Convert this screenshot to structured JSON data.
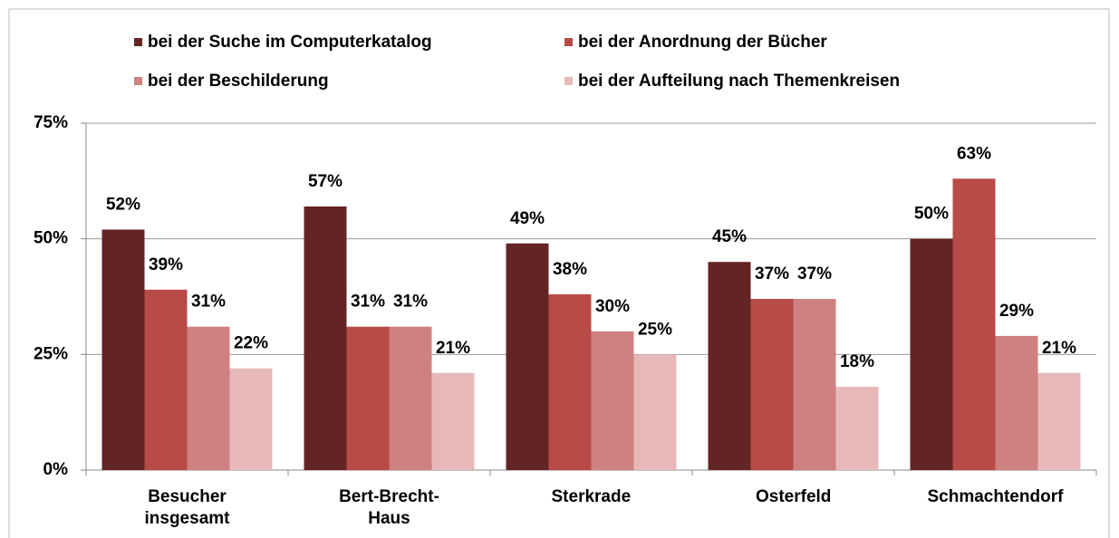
{
  "chart_data": {
    "type": "bar",
    "categories": [
      "Besucher insgesamt",
      "Bert-Brecht-Haus",
      "Sterkrade",
      "Osterfeld",
      "Schmachtendorf"
    ],
    "series": [
      {
        "name": "bei der Suche im Computerkatalog",
        "color": "#632523",
        "values": [
          52,
          57,
          49,
          45,
          50
        ],
        "value_labels": [
          "52%",
          "57%",
          "49%",
          "45%",
          "50%"
        ]
      },
      {
        "name": "bei der Anordnung der Bücher",
        "color": "#b84a47",
        "values": [
          39,
          31,
          38,
          37,
          63
        ],
        "value_labels": [
          "39%",
          "31%",
          "38%",
          "37%",
          "63%"
        ]
      },
      {
        "name": "bei der Beschilderung",
        "color": "#ce8180",
        "values": [
          31,
          31,
          30,
          37,
          29
        ],
        "value_labels": [
          "31%",
          "31%",
          "30%",
          "37%",
          "29%"
        ]
      },
      {
        "name": "bei der Aufteilung nach Themenkreisen",
        "color": "#e6b9b8",
        "values": [
          22,
          21,
          25,
          18,
          21
        ],
        "value_labels": [
          "22%",
          "21%",
          "25%",
          "18%",
          "21%"
        ]
      }
    ],
    "ylim": [
      0,
      75
    ],
    "yticks": [
      {
        "value": 0,
        "label": "0%"
      },
      {
        "value": 25,
        "label": "25%"
      },
      {
        "value": 50,
        "label": "50%"
      },
      {
        "value": 75,
        "label": "75%"
      }
    ],
    "grid": true,
    "legend": "top"
  }
}
